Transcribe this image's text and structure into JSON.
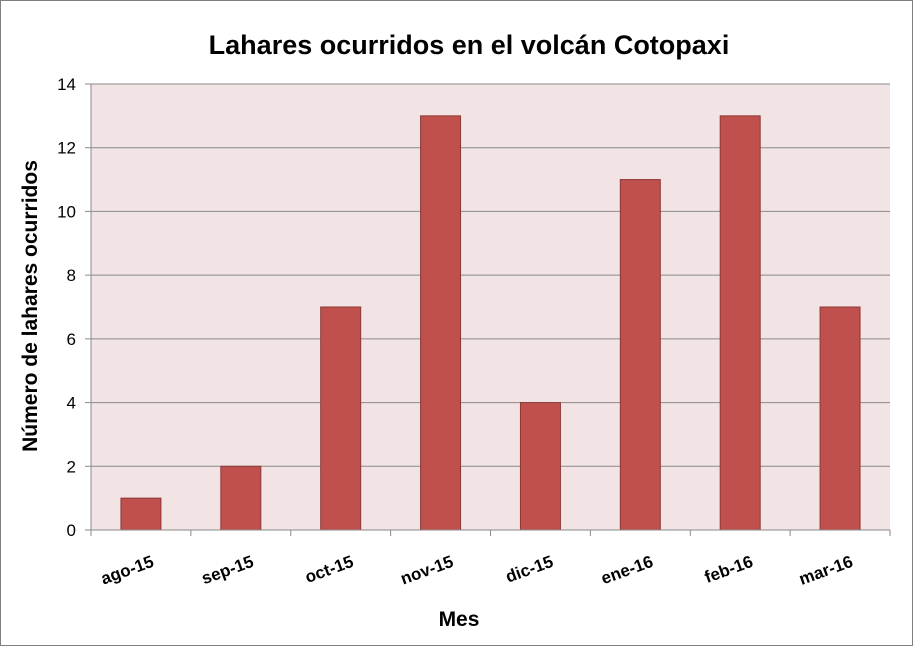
{
  "chart_data": {
    "type": "bar",
    "title": "Lahares ocurridos en el volcán Cotopaxi",
    "xlabel": "Mes",
    "ylabel": "Número de lahares ocurridos",
    "categories": [
      "ago-15",
      "sep-15",
      "oct-15",
      "nov-15",
      "dic-15",
      "ene-16",
      "feb-16",
      "mar-16"
    ],
    "values": [
      1,
      2,
      7,
      13,
      4,
      11,
      13,
      7
    ],
    "ylim": [
      0,
      14
    ],
    "yticks": [
      "0",
      "2",
      "4",
      "6",
      "8",
      "10",
      "12",
      "14"
    ],
    "grid": true,
    "legend": "none"
  },
  "colors": {
    "bar_fill": "#C0504D",
    "bar_stroke": "#8C3836",
    "plot_background": "#F2E4E4",
    "gridline": "#8a8a8a"
  }
}
